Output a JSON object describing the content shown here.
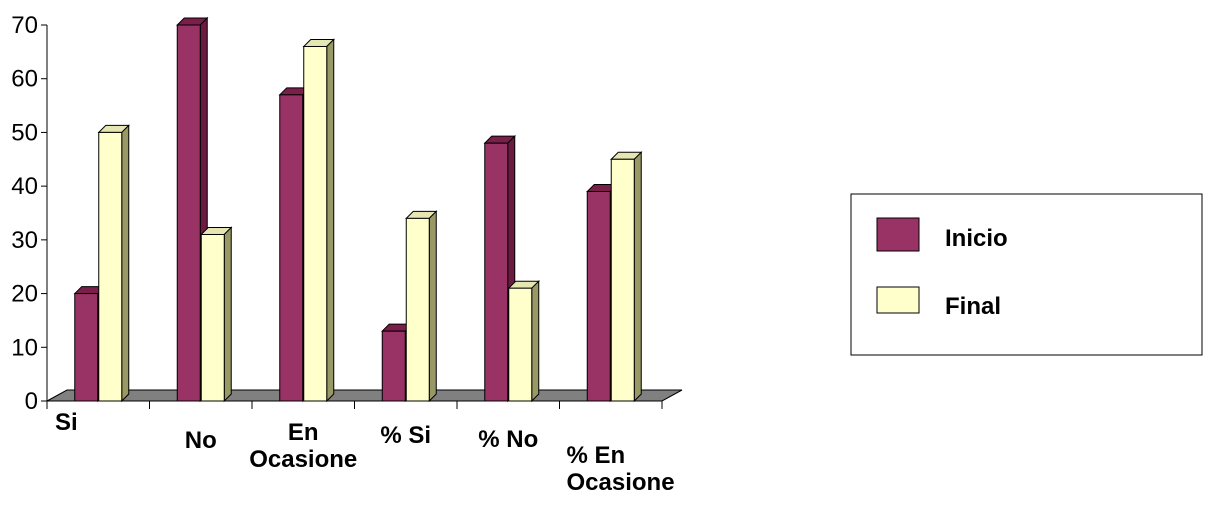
{
  "chart_data": {
    "type": "bar",
    "title": "",
    "xlabel": "",
    "ylabel": "",
    "categories": [
      "Si",
      "No",
      "En Ocasione",
      "% Si",
      "% No",
      "% En Ocasione"
    ],
    "series": [
      {
        "name": "Inicio",
        "values": [
          20,
          70,
          57,
          13,
          48,
          39
        ],
        "color": "#993366"
      },
      {
        "name": "Final",
        "values": [
          50,
          31,
          66,
          34,
          21,
          45
        ],
        "color": "#FFFFCC"
      }
    ],
    "yticks": [
      "0",
      "10",
      "20",
      "30",
      "40",
      "50",
      "60",
      "70"
    ],
    "ylim": [
      0,
      70
    ],
    "grid": false,
    "style": "3d-clustered-column",
    "floor_color": "#808080",
    "legend_position": "right"
  }
}
